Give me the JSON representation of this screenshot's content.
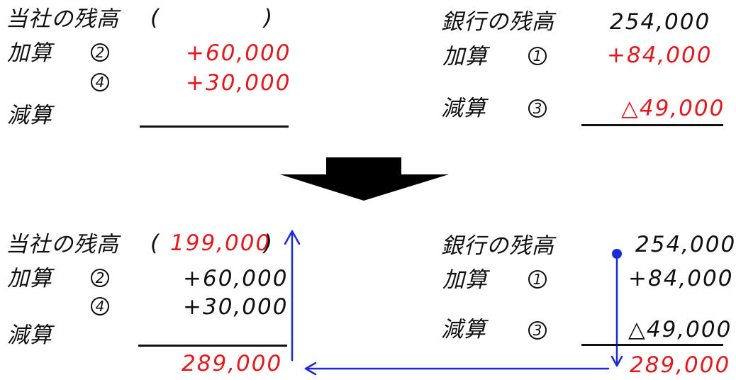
{
  "top": {
    "company": {
      "title": "当社の残高",
      "paren_open": "(",
      "paren_close": ")",
      "add_label": "加算",
      "add_items": [
        {
          "marker": "2",
          "value": "+60,000"
        },
        {
          "marker": "4",
          "value": "+30,000"
        }
      ],
      "sub_label": "減算"
    },
    "bank": {
      "title": "銀行の残高",
      "balance": "254,000",
      "add_label": "加算",
      "add_marker": "1",
      "add_value": "+84,000",
      "sub_label": "減算",
      "sub_marker": "3",
      "sub_value": "△49,000"
    }
  },
  "bottom": {
    "company": {
      "title": "当社の残高",
      "paren_open": "(",
      "balance": "199,000",
      "paren_close": ")",
      "add_label": "加算",
      "add_items": [
        {
          "marker": "2",
          "value": "+60,000"
        },
        {
          "marker": "4",
          "value": "+30,000"
        }
      ],
      "sub_label": "減算",
      "total": "289,000"
    },
    "bank": {
      "title": "銀行の残高",
      "balance": "254,000",
      "add_label": "加算",
      "add_marker": "1",
      "add_value": "+84,000",
      "sub_label": "減算",
      "sub_marker": "3",
      "sub_value": "△49,000",
      "total": "289,000"
    }
  },
  "colors": {
    "ink": "#111111",
    "accent_red": "#e3191e",
    "arrow_blue": "#1a2ad6"
  }
}
